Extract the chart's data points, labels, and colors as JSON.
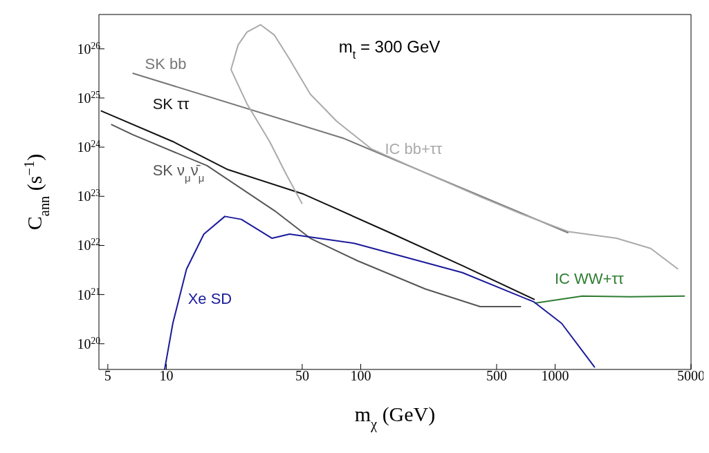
{
  "chart_data": {
    "type": "line",
    "xlabel": "m$_{χ}$ (GeV)",
    "ylabel": "C$_{ann}$ (s$^{−1}$)",
    "log": "xy",
    "xlim": [
      4.5,
      5000
    ],
    "ylim": [
      3e+19,
      5e+26
    ],
    "xticks": [
      5,
      10,
      50,
      100,
      500,
      1000,
      5000
    ],
    "yticks": [
      {
        "value": 1e+20,
        "label": "10$^{20}$"
      },
      {
        "value": 1e+21,
        "label": "10$^{21}$"
      },
      {
        "value": 1e+22,
        "label": "10$^{22}$"
      },
      {
        "value": 1e+23,
        "label": "10$^{23}$"
      },
      {
        "value": 1e+24,
        "label": "10$^{24}$"
      },
      {
        "value": 1e+25,
        "label": "10$^{25}$"
      },
      {
        "value": 1e+26,
        "label": "10$^{26}$"
      }
    ],
    "grid": false,
    "legend": false,
    "marker": "none",
    "line_style": "solid",
    "annotations": [
      "m$_{t}$ = 300 GeV"
    ],
    "series": [
      {
        "name": "SK bb",
        "color": "#777777",
        "x": [
          6.7,
          82,
          1170
        ],
        "values": [
          3.2e+25,
          1.5e+24,
          1.8e+22
        ]
      },
      {
        "name": "SK ττ",
        "color": "#111111",
        "x": [
          4.6,
          10.8,
          20.7,
          51,
          142,
          333,
          785
        ],
        "values": [
          5.5e+24,
          1.3e+24,
          3.5e+23,
          1.1e+23,
          1.8e+22,
          3.9e+21,
          7.9e+20
        ]
      },
      {
        "name": "SK ν$_{μ}$ν̄$_{μ}$",
        "color": "#555555",
        "x": [
          5.2,
          6.7,
          16.2,
          36,
          55,
          96,
          215,
          411,
          668
        ],
        "values": [
          2.9e+24,
          1.8e+24,
          4.2e+23,
          5.1e+22,
          1.4e+22,
          4.9e+21,
          1.3e+21,
          5.7e+20,
          5.7e+20
        ]
      },
      {
        "name": "IC bb+ττ",
        "color": "#aaaaaa",
        "x": [
          50,
          41,
          34,
          26,
          21.5,
          23.4,
          26,
          30.5,
          36,
          43,
          55,
          75,
          113,
          215,
          411,
          668,
          1175,
          2070,
          3100,
          4290
        ],
        "values": [
          7e+22,
          3e+23,
          1.3e+24,
          7.6e+24,
          3.8e+25,
          1.2e+26,
          2.2e+26,
          3.1e+26,
          1.9e+26,
          6.2e+25,
          1.2e+25,
          3.4e+24,
          9.3e+23,
          3e+23,
          9.8e+22,
          4.4e+22,
          1.9e+22,
          1.4e+22,
          8.7e+21,
          3.3e+21
        ]
      },
      {
        "name": "IC WW+ττ",
        "color": "#2e7d32",
        "x": [
          785,
          1380,
          2430,
          4650
        ],
        "values": [
          6.7e+20,
          9.3e+20,
          9e+20,
          9.3e+20
        ]
      },
      {
        "name": "Xe SD",
        "color": "#1a1a9a",
        "x": [
          9.8,
          10.8,
          12.7,
          15.6,
          20,
          24.3,
          35,
          43,
          93,
          333,
          778,
          1080,
          1600
        ],
        "values": [
          3e+19,
          2.6e+20,
          3.3e+21,
          1.7e+22,
          3.9e+22,
          3.4e+22,
          1.4e+22,
          1.7e+22,
          1.1e+22,
          2.8e+21,
          7.1e+20,
          2.6e+20,
          3.3e+19
        ]
      }
    ]
  }
}
